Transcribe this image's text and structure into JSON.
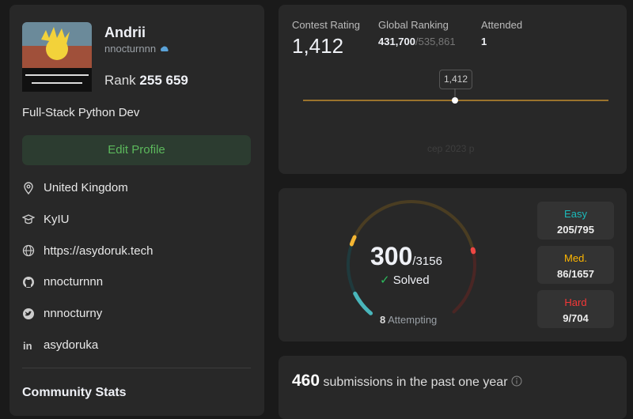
{
  "profile": {
    "name": "Andrii",
    "username": "nnocturnnn",
    "rank_label": "Rank",
    "rank": "255 659",
    "bio": "Full-Stack Python Dev",
    "edit_button": "Edit Profile",
    "details": [
      "United Kingdom",
      "KyIU",
      "https://asydoruk.tech",
      "nnocturnnn",
      "nnnocturny",
      "asydoruka"
    ],
    "community_stats": "Community Stats"
  },
  "contest": {
    "rating_label": "Contest Rating",
    "rating": "1,412",
    "ranking_label": "Global Ranking",
    "ranking": "431,700",
    "ranking_total": "/535,861",
    "attended_label": "Attended",
    "attended": "1",
    "date_label": "сер 2023 р"
  },
  "solved": {
    "count": "300",
    "total": "/3156",
    "label": "Solved",
    "attempting_count": "8",
    "attempting_label": "Attempting",
    "difficulties": [
      {
        "name": "Easy",
        "value": "205/795"
      },
      {
        "name": "Med.",
        "value": "86/1657"
      },
      {
        "name": "Hard",
        "value": "9/704"
      }
    ]
  },
  "submissions": {
    "count": "460",
    "label": "submissions in the past one year"
  }
}
